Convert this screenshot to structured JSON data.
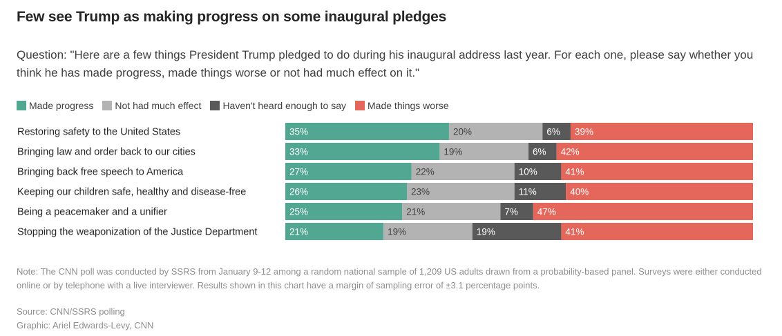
{
  "title": "Few see Trump as making progress on some inaugural pledges",
  "subtitle": "Question: \"Here are a few things President Trump pledged to do during his inaugural address last year. For each one, please say whether you think he has made progress, made things worse or not had much effect on it.\"",
  "legend": [
    {
      "label": "Made progress",
      "color": "#52a793"
    },
    {
      "label": "Not had much effect",
      "color": "#b3b3b3"
    },
    {
      "label": "Haven't heard enough to say",
      "color": "#595959"
    },
    {
      "label": "Made things worse",
      "color": "#e5675c"
    }
  ],
  "chart_data": {
    "type": "bar",
    "orientation": "horizontal",
    "stacked": true,
    "categories": [
      "Restoring safety to the United States",
      "Bringing law and order back to our cities",
      "Bringing back free speech to America",
      "Keeping our children safe, healthy and disease-free",
      "Being a peacemaker and a unifier",
      "Stopping the weaponization of the Justice Department"
    ],
    "series": [
      {
        "name": "Made progress",
        "color": "#52a793",
        "label_color": "#ffffff",
        "values": [
          35,
          33,
          27,
          26,
          25,
          21
        ]
      },
      {
        "name": "Not had much effect",
        "color": "#b3b3b3",
        "label_color": "#404040",
        "values": [
          20,
          19,
          22,
          23,
          21,
          19
        ]
      },
      {
        "name": "Haven't heard enough to say",
        "color": "#595959",
        "label_color": "#ffffff",
        "values": [
          6,
          6,
          10,
          11,
          7,
          19
        ]
      },
      {
        "name": "Made things worse",
        "color": "#e5675c",
        "label_color": "#ffffff",
        "values": [
          39,
          42,
          41,
          40,
          47,
          41
        ]
      }
    ],
    "value_suffix": "%",
    "xlim": [
      0,
      100
    ]
  },
  "note": "Note: The CNN poll was conducted by SSRS from January 9-12 among a random national sample of 1,209 US adults drawn from a probability-based panel. Surveys were either conducted online or by telephone with a live interviewer. Results shown in this chart have a margin of sampling error of ±3.1 percentage points.",
  "source": "Source: CNN/SSRS polling",
  "credit": "Graphic: Ariel Edwards-Levy, CNN"
}
